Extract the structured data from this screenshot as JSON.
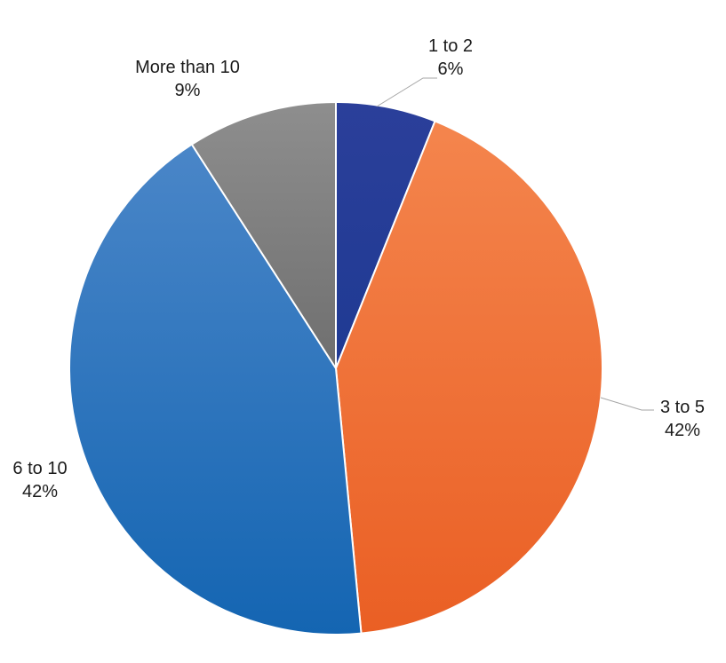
{
  "chart_data": {
    "type": "pie",
    "title": "",
    "slices": [
      {
        "label": "1 to 2",
        "value": 6,
        "value_label": "6%",
        "color_top": "#2b3f9a",
        "color_bottom": "#1f3a93"
      },
      {
        "label": "3 to 5",
        "value": 42,
        "value_label": "42%",
        "color_top": "#f4854d",
        "color_bottom": "#ea5f24"
      },
      {
        "label": "6 to 10",
        "value": 42,
        "value_label": "42%",
        "color_top": "#4a86c8",
        "color_bottom": "#1465b2"
      },
      {
        "label": "More than 10",
        "value": 9,
        "value_label": "9%",
        "color_top": "#8e8e8e",
        "color_bottom": "#6f6f6f"
      }
    ],
    "legend": "none",
    "data_labels": "outside with leader lines"
  }
}
